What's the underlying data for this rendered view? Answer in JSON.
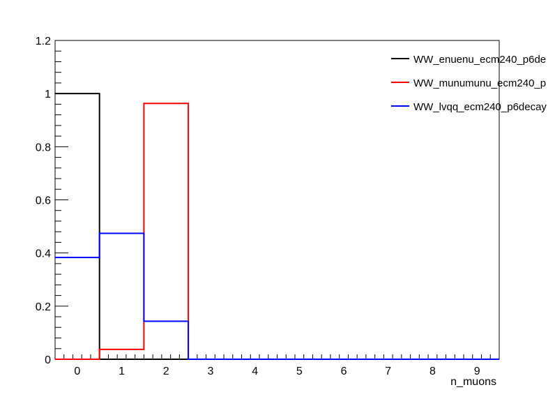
{
  "chart_data": {
    "type": "histogram",
    "xlabel": "n_muons",
    "ylabel": "",
    "xlim": [
      -0.5,
      9.5
    ],
    "ylim": [
      0,
      1.2
    ],
    "bin_edges": [
      -0.5,
      0.5,
      1.5,
      2.5,
      3.5,
      4.5,
      5.5,
      6.5,
      7.5,
      8.5,
      9.5
    ],
    "x_ticks": [
      "0",
      "1",
      "2",
      "3",
      "4",
      "5",
      "6",
      "7",
      "8",
      "9"
    ],
    "y_ticks": [
      "0",
      "0.2",
      "0.4",
      "0.6",
      "0.8",
      "1",
      "1.2"
    ],
    "grid": false,
    "legend_position": "top-right",
    "series": [
      {
        "name": "WW_enuenu_ecm240_p6de",
        "color": "#000000",
        "values": [
          1.0,
          0,
          0,
          0,
          0,
          0,
          0,
          0,
          0,
          0
        ]
      },
      {
        "name": "WW_munumunu_ecm240_p",
        "color": "#ff0000",
        "values": [
          0,
          0.037,
          0.963,
          0,
          0,
          0,
          0,
          0,
          0,
          0
        ]
      },
      {
        "name": "WW_lvqq_ecm240_p6decay",
        "color": "#0000ff",
        "values": [
          0.383,
          0.474,
          0.143,
          0,
          0,
          0,
          0,
          0,
          0,
          0
        ]
      }
    ]
  }
}
